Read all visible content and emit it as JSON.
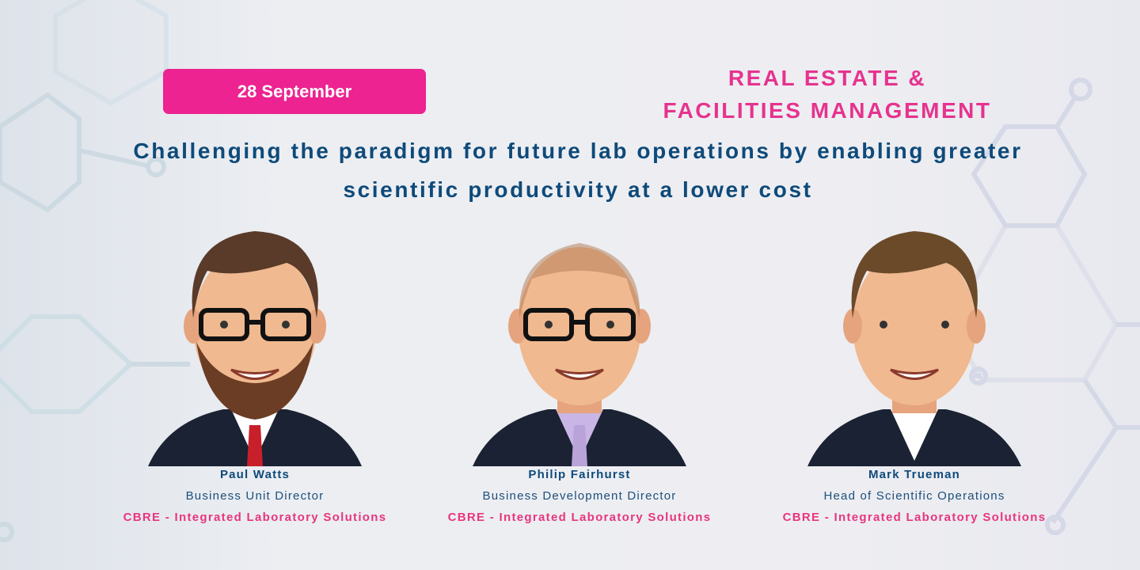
{
  "event": {
    "date": "28 September",
    "category_line1": "REAL ESTATE &",
    "category_line2": "FACILITIES MANAGEMENT",
    "headline_line1": "Challenging the paradigm for future lab operations by enabling greater",
    "headline_line2": "scientific productivity at a lower cost"
  },
  "speakers": [
    {
      "name": "Paul Watts",
      "role": "Business Unit Director",
      "org": "CBRE - Integrated Laboratory Solutions",
      "hair": "#5a3a28",
      "tie": "#c8202a",
      "shirt": "#ffffff",
      "beard": true,
      "bald": false
    },
    {
      "name": "Philip Fairhurst",
      "role": "Business Development Director",
      "org": "CBRE - Integrated Laboratory Solutions",
      "hair": "#b07a52",
      "tie": "#b9a3d9",
      "shirt": "#c9b5e6",
      "beard": false,
      "bald": true
    },
    {
      "name": "Mark Trueman",
      "role": "Head of Scientific Operations",
      "org": "CBRE - Integrated Laboratory Solutions",
      "hair": "#6b4a2a",
      "tie": null,
      "shirt": "#ffffff",
      "beard": false,
      "bald": false
    }
  ],
  "colors": {
    "accent_pink": "#ec2390",
    "navy": "#0e4a7a",
    "background": "#eceef2"
  }
}
